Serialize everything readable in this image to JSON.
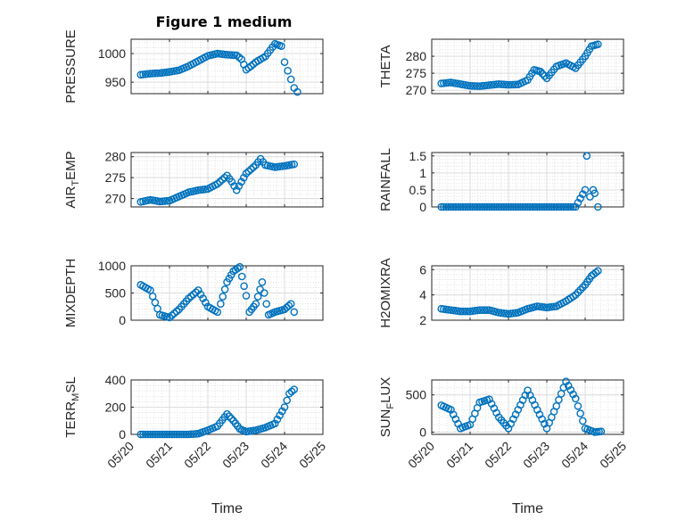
{
  "colors": {
    "series": "#0072BD",
    "axis": "#262626"
  },
  "figure_title": "Figure 1 medium",
  "chart_data": [
    {
      "id": "pressure",
      "type": "scatter",
      "title": "Figure 1 medium",
      "ylabel": "PRESSURE",
      "xlabel": "",
      "xlim": [
        "05/20",
        "05/25"
      ],
      "ylim": [
        930,
        1025
      ],
      "xticks": [
        "05/20",
        "05/21",
        "05/22",
        "05/23",
        "05/24",
        "05/25"
      ],
      "yticks": [
        "950",
        "1000"
      ],
      "grid": true,
      "points": [
        [
          "05/20 06:00",
          963
        ],
        [
          "05/20 12:00",
          965
        ],
        [
          "05/20 18:00",
          966
        ],
        [
          "05/21 00:00",
          968
        ],
        [
          "05/21 06:00",
          971
        ],
        [
          "05/21 12:00",
          978
        ],
        [
          "05/21 18:00",
          987
        ],
        [
          "05/22 00:00",
          996
        ],
        [
          "05/22 06:00",
          1000
        ],
        [
          "05/22 12:00",
          998
        ],
        [
          "05/22 18:00",
          997
        ],
        [
          "05/22 21:00",
          990
        ],
        [
          "05/23 00:00",
          972
        ],
        [
          "05/23 03:00",
          978
        ],
        [
          "05/23 06:00",
          985
        ],
        [
          "05/23 12:00",
          995
        ],
        [
          "05/23 18:00",
          1017
        ],
        [
          "05/23 22:00",
          1013
        ],
        [
          "05/24 00:00",
          985
        ],
        [
          "05/24 02:00",
          970
        ],
        [
          "05/24 04:00",
          955
        ],
        [
          "05/24 06:00",
          940
        ],
        [
          "05/24 08:00",
          933
        ]
      ]
    },
    {
      "id": "theta",
      "type": "scatter",
      "title": "",
      "ylabel": "THETA",
      "xlabel": "",
      "xlim": [
        "05/20",
        "05/25"
      ],
      "ylim": [
        269,
        285
      ],
      "xticks": [
        "05/20",
        "05/21",
        "05/22",
        "05/23",
        "05/24",
        "05/25"
      ],
      "yticks": [
        "270",
        "275",
        "280"
      ],
      "grid": true,
      "points": [
        [
          "05/20 06:00",
          272
        ],
        [
          "05/20 12:00",
          272.3
        ],
        [
          "05/20 18:00",
          271.8
        ],
        [
          "05/21 00:00",
          271.3
        ],
        [
          "05/21 06:00",
          271.2
        ],
        [
          "05/21 12:00",
          271.5
        ],
        [
          "05/21 18:00",
          271.8
        ],
        [
          "05/22 00:00",
          271.6
        ],
        [
          "05/22 06:00",
          271.7
        ],
        [
          "05/22 12:00",
          273
        ],
        [
          "05/22 16:00",
          276
        ],
        [
          "05/22 20:00",
          275.5
        ],
        [
          "05/23 00:00",
          273.5
        ],
        [
          "05/23 06:00",
          277
        ],
        [
          "05/23 12:00",
          278
        ],
        [
          "05/23 18:00",
          276.5
        ],
        [
          "05/24 00:00",
          280
        ],
        [
          "05/24 04:00",
          283
        ],
        [
          "05/24 08:00",
          283.5
        ]
      ]
    },
    {
      "id": "air_temp",
      "type": "scatter",
      "title": "",
      "ylabel": "AIR_TEMP",
      "ylabel_main1": "AIR",
      "ylabel_sub": "T",
      "ylabel_main2": "EMP",
      "xlabel": "",
      "xlim": [
        "05/20",
        "05/25"
      ],
      "ylim": [
        268,
        281
      ],
      "xticks": [
        "05/20",
        "05/21",
        "05/22",
        "05/23",
        "05/24",
        "05/25"
      ],
      "yticks": [
        "270",
        "275",
        "280"
      ],
      "grid": true,
      "points": [
        [
          "05/20 06:00",
          269.2
        ],
        [
          "05/20 12:00",
          269.7
        ],
        [
          "05/20 18:00",
          269.3
        ],
        [
          "05/21 00:00",
          269.5
        ],
        [
          "05/21 06:00",
          270.5
        ],
        [
          "05/21 12:00",
          271.5
        ],
        [
          "05/21 18:00",
          272
        ],
        [
          "05/22 00:00",
          272.3
        ],
        [
          "05/22 06:00",
          273.5
        ],
        [
          "05/22 12:00",
          275.5
        ],
        [
          "05/22 15:00",
          274
        ],
        [
          "05/22 18:00",
          272
        ],
        [
          "05/23 00:00",
          276
        ],
        [
          "05/23 06:00",
          278
        ],
        [
          "05/23 09:00",
          279.5
        ],
        [
          "05/23 12:00",
          278
        ],
        [
          "05/23 18:00",
          277.5
        ],
        [
          "05/24 00:00",
          277.8
        ],
        [
          "05/24 06:00",
          278.2
        ]
      ]
    },
    {
      "id": "rainfall",
      "type": "scatter",
      "title": "",
      "ylabel": "RAINFALL",
      "xlabel": "",
      "xlim": [
        "05/20",
        "05/25"
      ],
      "ylim": [
        0,
        1.6
      ],
      "xticks": [
        "05/20",
        "05/21",
        "05/22",
        "05/23",
        "05/24",
        "05/25"
      ],
      "yticks": [
        "0",
        "0.5",
        "1",
        "1.5"
      ],
      "grid": true,
      "points": [
        [
          "05/20 06:00",
          0
        ],
        [
          "05/20 12:00",
          0
        ],
        [
          "05/20 18:00",
          0
        ],
        [
          "05/21 00:00",
          0
        ],
        [
          "05/21 06:00",
          0
        ],
        [
          "05/21 12:00",
          0
        ],
        [
          "05/21 18:00",
          0
        ],
        [
          "05/22 00:00",
          0
        ],
        [
          "05/22 06:00",
          0
        ],
        [
          "05/22 12:00",
          0
        ],
        [
          "05/22 18:00",
          0
        ],
        [
          "05/23 00:00",
          0
        ],
        [
          "05/23 06:00",
          0
        ],
        [
          "05/23 12:00",
          0
        ],
        [
          "05/23 18:00",
          0
        ],
        [
          "05/24 00:00",
          0.5
        ],
        [
          "05/24 01:00",
          1.5
        ],
        [
          "05/24 03:00",
          0.3
        ],
        [
          "05/24 05:00",
          0.5
        ],
        [
          "05/24 06:00",
          0.4
        ],
        [
          "05/24 08:00",
          0
        ]
      ]
    },
    {
      "id": "mixdepth",
      "type": "scatter",
      "title": "",
      "ylabel": "MIXDEPTH",
      "xlabel": "",
      "xlim": [
        "05/20",
        "05/25"
      ],
      "ylim": [
        0,
        1000
      ],
      "xticks": [
        "05/20",
        "05/21",
        "05/22",
        "05/23",
        "05/24",
        "05/25"
      ],
      "yticks": [
        "0",
        "500",
        "1000"
      ],
      "grid": true,
      "points": [
        [
          "05/20 06:00",
          650
        ],
        [
          "05/20 12:00",
          550
        ],
        [
          "05/20 18:00",
          100
        ],
        [
          "05/21 00:00",
          50
        ],
        [
          "05/21 06:00",
          200
        ],
        [
          "05/21 12:00",
          400
        ],
        [
          "05/21 18:00",
          550
        ],
        [
          "05/22 00:00",
          250
        ],
        [
          "05/22 06:00",
          150
        ],
        [
          "05/22 08:00",
          300
        ],
        [
          "05/22 12:00",
          700
        ],
        [
          "05/22 16:00",
          900
        ],
        [
          "05/22 20:00",
          980
        ],
        [
          "05/23 00:00",
          450
        ],
        [
          "05/23 02:00",
          150
        ],
        [
          "05/23 06:00",
          300
        ],
        [
          "05/23 10:00",
          700
        ],
        [
          "05/23 14:00",
          100
        ],
        [
          "05/23 18:00",
          150
        ],
        [
          "05/24 00:00",
          200
        ],
        [
          "05/24 04:00",
          300
        ],
        [
          "05/24 06:00",
          150
        ]
      ]
    },
    {
      "id": "h2omixra",
      "type": "scatter",
      "title": "",
      "ylabel": "H2OMIXRA",
      "xlabel": "",
      "xlim": [
        "05/20",
        "05/25"
      ],
      "ylim": [
        2,
        6.3
      ],
      "xticks": [
        "05/20",
        "05/21",
        "05/22",
        "05/23",
        "05/24",
        "05/25"
      ],
      "yticks": [
        "2",
        "4",
        "6"
      ],
      "grid": true,
      "points": [
        [
          "05/20 06:00",
          2.9
        ],
        [
          "05/20 12:00",
          2.8
        ],
        [
          "05/20 18:00",
          2.7
        ],
        [
          "05/21 00:00",
          2.7
        ],
        [
          "05/21 06:00",
          2.8
        ],
        [
          "05/21 12:00",
          2.8
        ],
        [
          "05/21 18:00",
          2.6
        ],
        [
          "05/22 00:00",
          2.5
        ],
        [
          "05/22 06:00",
          2.6
        ],
        [
          "05/22 12:00",
          2.9
        ],
        [
          "05/22 18:00",
          3.1
        ],
        [
          "05/23 00:00",
          3.0
        ],
        [
          "05/23 06:00",
          3.1
        ],
        [
          "05/23 12:00",
          3.5
        ],
        [
          "05/23 18:00",
          4.0
        ],
        [
          "05/24 00:00",
          4.8
        ],
        [
          "05/24 04:00",
          5.5
        ],
        [
          "05/24 08:00",
          5.9
        ]
      ]
    },
    {
      "id": "terr_msl",
      "type": "scatter",
      "title": "",
      "ylabel": "TERR_MSL",
      "ylabel_main1": "TERR",
      "ylabel_sub": "M",
      "ylabel_main2": "SL",
      "xlabel": "Time",
      "xlim": [
        "05/20",
        "05/25"
      ],
      "ylim": [
        0,
        400
      ],
      "xticks": [
        "05/20",
        "05/21",
        "05/22",
        "05/23",
        "05/24",
        "05/25"
      ],
      "yticks": [
        "0",
        "200",
        "400"
      ],
      "grid": true,
      "points": [
        [
          "05/20 06:00",
          0
        ],
        [
          "05/20 12:00",
          0
        ],
        [
          "05/20 18:00",
          0
        ],
        [
          "05/21 00:00",
          0
        ],
        [
          "05/21 06:00",
          0
        ],
        [
          "05/21 12:00",
          0
        ],
        [
          "05/21 18:00",
          5
        ],
        [
          "05/22 00:00",
          30
        ],
        [
          "05/22 06:00",
          60
        ],
        [
          "05/22 12:00",
          150
        ],
        [
          "05/22 16:00",
          100
        ],
        [
          "05/22 20:00",
          40
        ],
        [
          "05/23 00:00",
          20
        ],
        [
          "05/23 06:00",
          30
        ],
        [
          "05/23 12:00",
          50
        ],
        [
          "05/23 18:00",
          80
        ],
        [
          "05/24 00:00",
          200
        ],
        [
          "05/24 03:00",
          300
        ],
        [
          "05/24 06:00",
          330
        ]
      ]
    },
    {
      "id": "sun_flux",
      "type": "scatter",
      "title": "",
      "ylabel": "SUN_FLUX",
      "ylabel_main1": "SUN",
      "ylabel_sub": "F",
      "ylabel_main2": "LUX",
      "xlabel": "Time",
      "xlim": [
        "05/20",
        "05/25"
      ],
      "ylim": [
        -30,
        700
      ],
      "xticks": [
        "05/20",
        "05/21",
        "05/22",
        "05/23",
        "05/24",
        "05/25"
      ],
      "yticks": [
        "0",
        "500"
      ],
      "grid": true,
      "points": [
        [
          "05/20 06:00",
          360
        ],
        [
          "05/20 12:00",
          300
        ],
        [
          "05/20 18:00",
          50
        ],
        [
          "05/21 00:00",
          100
        ],
        [
          "05/21 06:00",
          400
        ],
        [
          "05/21 12:00",
          440
        ],
        [
          "05/21 18:00",
          200
        ],
        [
          "05/22 00:00",
          50
        ],
        [
          "05/22 06:00",
          300
        ],
        [
          "05/22 12:00",
          560
        ],
        [
          "05/22 18:00",
          300
        ],
        [
          "05/23 00:00",
          50
        ],
        [
          "05/23 06:00",
          350
        ],
        [
          "05/23 12:00",
          680
        ],
        [
          "05/23 18:00",
          450
        ],
        [
          "05/24 00:00",
          50
        ],
        [
          "05/24 06:00",
          0
        ],
        [
          "05/24 10:00",
          10
        ]
      ]
    }
  ]
}
